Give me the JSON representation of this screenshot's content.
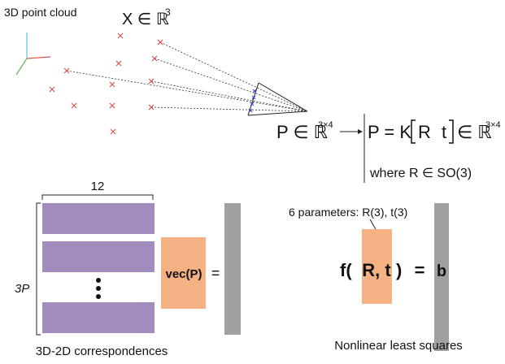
{
  "point_cloud": {
    "label": "3D point cloud",
    "set_label": {
      "base": "X ∈ ℝ",
      "sup": "3"
    }
  },
  "projection": {
    "base": "P ∈ ℝ",
    "sup": "3×4"
  },
  "decomposition": {
    "lhs": "P = K",
    "r": "R",
    "t": "t",
    "rel": "∈ ℝ",
    "sup": "3×4",
    "constraint": "where R ∈ SO(3)"
  },
  "linear": {
    "width_label": "12",
    "height_label": "3P",
    "vector_label": "vec(P)",
    "equals": "=",
    "caption": "3D-2D correspondences"
  },
  "nonlinear": {
    "params": "6 parameters: R(3), t(3)",
    "open": "f(",
    "args": "R, t",
    "close": ")",
    "equals": "=",
    "rhs": "b",
    "caption": "Nonlinear least squares"
  }
}
